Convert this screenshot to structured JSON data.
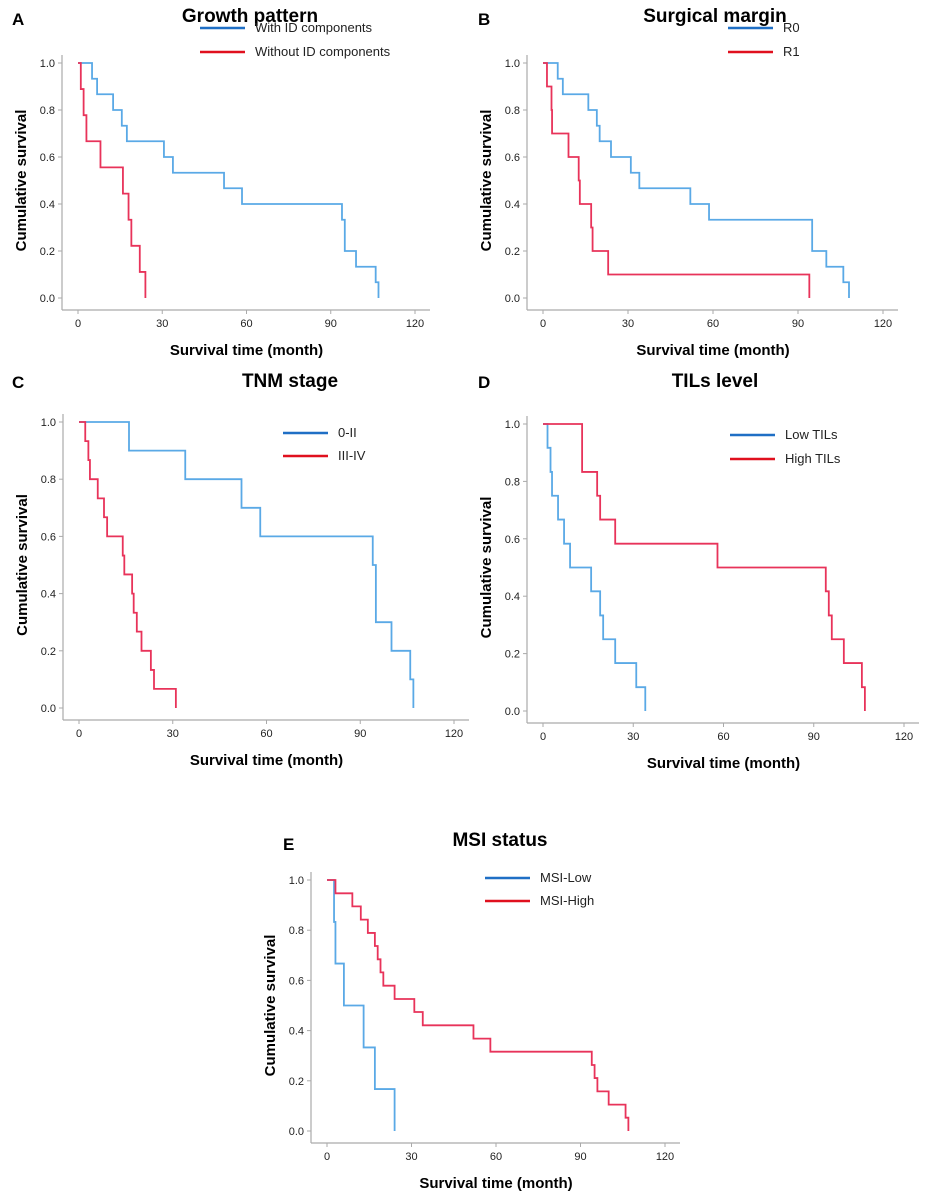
{
  "chart_data": [
    {
      "type": "line",
      "step": true,
      "panel_label": "A",
      "title": "Growth pattern",
      "xlabel": "Survival time (month)",
      "ylabel": "Cumulative survival",
      "xlim": [
        0,
        120
      ],
      "ylim": [
        0,
        1
      ],
      "xticks": [
        "0",
        "30",
        "60",
        "90",
        "120"
      ],
      "yticks": [
        "0.0",
        "0.2",
        "0.4",
        "0.6",
        "0.8",
        "1.0"
      ],
      "legend_position": "top-right",
      "grid": false,
      "series": [
        {
          "name": "With ID components",
          "color": "#5aa9e6",
          "points": [
            [
              0,
              1
            ],
            [
              5,
              0.933
            ],
            [
              6.8,
              0.867
            ],
            [
              12.5,
              0.8
            ],
            [
              15.6,
              0.733
            ],
            [
              17.4,
              0.667
            ],
            [
              30.6,
              0.6
            ],
            [
              33.8,
              0.533
            ],
            [
              52,
              0.467
            ],
            [
              58.4,
              0.4
            ],
            [
              94,
              0.333
            ],
            [
              95,
              0.2
            ],
            [
              99,
              0.133
            ],
            [
              106,
              0.067
            ],
            [
              107,
              0
            ]
          ]
        },
        {
          "name": "Without ID components",
          "color": "#e8335a",
          "points": [
            [
              0,
              1
            ],
            [
              1,
              0.889
            ],
            [
              2,
              0.778
            ],
            [
              3,
              0.667
            ],
            [
              8,
              0.556
            ],
            [
              16,
              0.444
            ],
            [
              18,
              0.333
            ],
            [
              19,
              0.222
            ],
            [
              22,
              0.111
            ],
            [
              24,
              0
            ]
          ]
        }
      ]
    },
    {
      "type": "line",
      "step": true,
      "panel_label": "B",
      "title": "Surgical margin",
      "xlabel": "Survival time (month)",
      "ylabel": "Cumulative survival",
      "xlim": [
        0,
        120
      ],
      "ylim": [
        0,
        1
      ],
      "xticks": [
        "0",
        "30",
        "60",
        "90",
        "120"
      ],
      "yticks": [
        "0.0",
        "0.2",
        "0.4",
        "0.6",
        "0.8",
        "1.0"
      ],
      "legend_position": "top-right",
      "grid": false,
      "series": [
        {
          "name": "R0",
          "color": "#5aa9e6",
          "points": [
            [
              0,
              1
            ],
            [
              5.2,
              0.933
            ],
            [
              7,
              0.867
            ],
            [
              16,
              0.8
            ],
            [
              19,
              0.733
            ],
            [
              20,
              0.667
            ],
            [
              24,
              0.6
            ],
            [
              31,
              0.533
            ],
            [
              34,
              0.467
            ],
            [
              52,
              0.4
            ],
            [
              58.6,
              0.333
            ],
            [
              95,
              0.2
            ],
            [
              100,
              0.133
            ],
            [
              106,
              0.067
            ],
            [
              108,
              0
            ]
          ]
        },
        {
          "name": "R1",
          "color": "#e8335a",
          "points": [
            [
              0,
              1
            ],
            [
              1.4,
              0.9
            ],
            [
              3,
              0.8
            ],
            [
              3.2,
              0.7
            ],
            [
              9,
              0.6
            ],
            [
              12.6,
              0.5
            ],
            [
              13,
              0.4
            ],
            [
              17,
              0.3
            ],
            [
              17.5,
              0.2
            ],
            [
              23,
              0.1
            ],
            [
              94,
              0
            ]
          ]
        }
      ]
    },
    {
      "type": "line",
      "step": true,
      "panel_label": "C",
      "title": "TNM stage",
      "xlabel": "Survival time (month)",
      "ylabel": "Cumulative survival",
      "xlim": [
        0,
        120
      ],
      "ylim": [
        0,
        1
      ],
      "xticks": [
        "0",
        "30",
        "60",
        "90",
        "120"
      ],
      "yticks": [
        "0.0",
        "0.2",
        "0.4",
        "0.6",
        "0.8",
        "1.0"
      ],
      "legend_position": "top-right",
      "grid": false,
      "series": [
        {
          "name": "0-II",
          "color": "#5aa9e6",
          "points": [
            [
              0,
              1
            ],
            [
              16,
              0.9
            ],
            [
              34,
              0.8
            ],
            [
              52,
              0.7
            ],
            [
              58,
              0.6
            ],
            [
              94,
              0.5
            ],
            [
              95,
              0.3
            ],
            [
              100,
              0.2
            ],
            [
              106,
              0.1
            ],
            [
              107,
              0
            ]
          ]
        },
        {
          "name": "III-IV",
          "color": "#e8335a",
          "points": [
            [
              0,
              1
            ],
            [
              2,
              0.933
            ],
            [
              3,
              0.867
            ],
            [
              3.5,
              0.8
            ],
            [
              6,
              0.733
            ],
            [
              8,
              0.667
            ],
            [
              9,
              0.6
            ],
            [
              14,
              0.533
            ],
            [
              14.5,
              0.467
            ],
            [
              17,
              0.4
            ],
            [
              17.5,
              0.333
            ],
            [
              18.5,
              0.267
            ],
            [
              20,
              0.2
            ],
            [
              23,
              0.133
            ],
            [
              24,
              0.067
            ],
            [
              31,
              0
            ]
          ]
        }
      ]
    },
    {
      "type": "line",
      "step": true,
      "panel_label": "D",
      "title": "TILs level",
      "xlabel": "Survival time (month)",
      "ylabel": "Cumulative survival",
      "xlim": [
        0,
        120
      ],
      "ylim": [
        0,
        1
      ],
      "xticks": [
        "0",
        "30",
        "60",
        "90",
        "120"
      ],
      "yticks": [
        "0.0",
        "0.2",
        "0.4",
        "0.6",
        "0.8",
        "1.0"
      ],
      "legend_position": "top-right",
      "grid": false,
      "series": [
        {
          "name": "Low TILs",
          "color": "#5aa9e6",
          "points": [
            [
              0,
              1
            ],
            [
              1.5,
              0.917
            ],
            [
              2.5,
              0.833
            ],
            [
              3,
              0.75
            ],
            [
              5,
              0.667
            ],
            [
              7,
              0.583
            ],
            [
              9,
              0.5
            ],
            [
              16,
              0.417
            ],
            [
              19,
              0.333
            ],
            [
              20,
              0.25
            ],
            [
              24,
              0.167
            ],
            [
              31,
              0.083
            ],
            [
              34,
              0
            ]
          ]
        },
        {
          "name": "High TILs",
          "color": "#e8335a",
          "points": [
            [
              0,
              1
            ],
            [
              13,
              0.833
            ],
            [
              18,
              0.75
            ],
            [
              19,
              0.667
            ],
            [
              24,
              0.583
            ],
            [
              58,
              0.5
            ],
            [
              94,
              0.417
            ],
            [
              95,
              0.333
            ],
            [
              96,
              0.25
            ],
            [
              100,
              0.167
            ],
            [
              106,
              0.083
            ],
            [
              107,
              0
            ]
          ]
        }
      ]
    },
    {
      "type": "line",
      "step": true,
      "panel_label": "E",
      "title": "MSI status",
      "xlabel": "Survival time (month)",
      "ylabel": "Cumulative survival",
      "xlim": [
        0,
        120
      ],
      "ylim": [
        0,
        1
      ],
      "xticks": [
        "0",
        "30",
        "60",
        "90",
        "120"
      ],
      "yticks": [
        "0.0",
        "0.2",
        "0.4",
        "0.6",
        "0.8",
        "1.0"
      ],
      "legend_position": "top-right",
      "grid": false,
      "series": [
        {
          "name": "MSI-Low",
          "color": "#5aa9e6",
          "points": [
            [
              0,
              1
            ],
            [
              2.5,
              0.833
            ],
            [
              3,
              0.667
            ],
            [
              6,
              0.5
            ],
            [
              13,
              0.333
            ],
            [
              17,
              0.167
            ],
            [
              24,
              0
            ]
          ]
        },
        {
          "name": "MSI-High",
          "color": "#e8335a",
          "points": [
            [
              0,
              1
            ],
            [
              3,
              0.947
            ],
            [
              9,
              0.895
            ],
            [
              12,
              0.842
            ],
            [
              14.5,
              0.789
            ],
            [
              17,
              0.737
            ],
            [
              18,
              0.684
            ],
            [
              19,
              0.632
            ],
            [
              20,
              0.579
            ],
            [
              24,
              0.526
            ],
            [
              31,
              0.474
            ],
            [
              34,
              0.421
            ],
            [
              52,
              0.368
            ],
            [
              58,
              0.316
            ],
            [
              94,
              0.263
            ],
            [
              95,
              0.211
            ],
            [
              96,
              0.158
            ],
            [
              100,
              0.105
            ],
            [
              106,
              0.053
            ],
            [
              107,
              0
            ]
          ]
        }
      ]
    }
  ],
  "legend_line_colors": [
    "#1f6fc5",
    "#e0101e"
  ]
}
